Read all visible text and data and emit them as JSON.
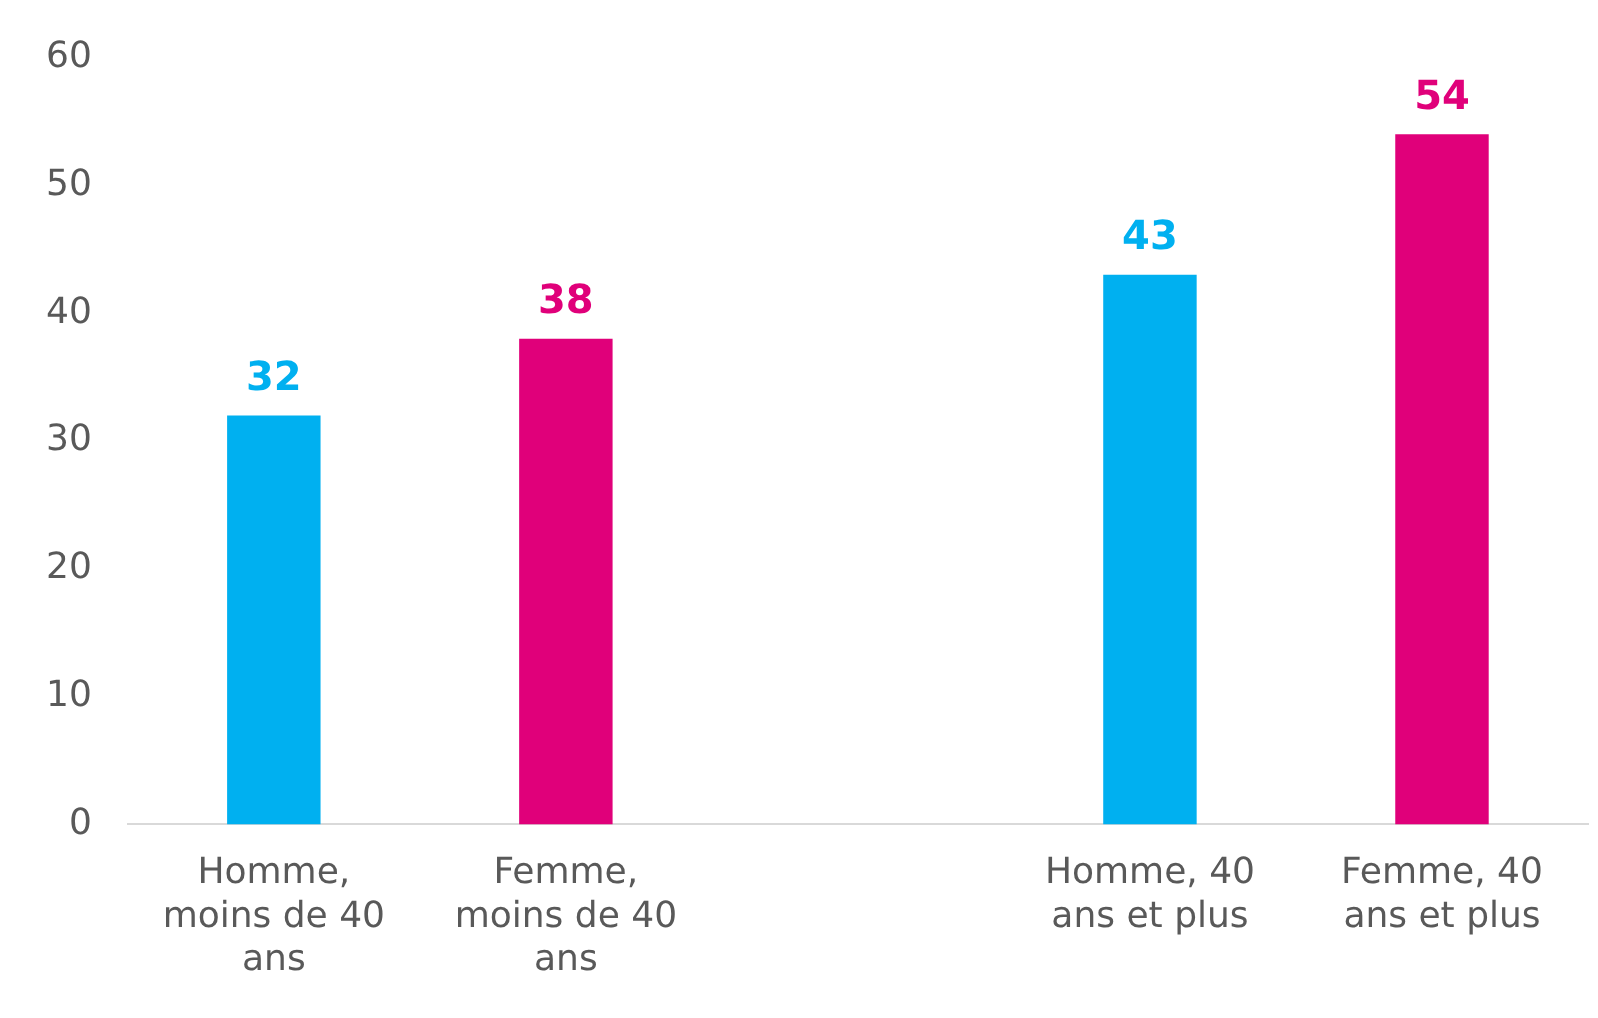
{
  "chart_data": {
    "type": "bar",
    "categories": [
      "Homme, moins de 40 ans",
      "Femme, moins de 40 ans",
      null,
      "Homme, 40 ans et plus",
      "Femme, 40 ans et plus"
    ],
    "values": [
      32,
      38,
      null,
      43,
      54
    ],
    "colors": [
      "#00b0f0",
      "#e0007a",
      "#000000",
      "#00b0f0",
      "#e0007a"
    ],
    "ylim": [
      0,
      60
    ],
    "yticks": [
      0,
      10,
      20,
      30,
      40,
      50,
      60
    ],
    "grid": false,
    "legend": false,
    "data_labels": true
  }
}
